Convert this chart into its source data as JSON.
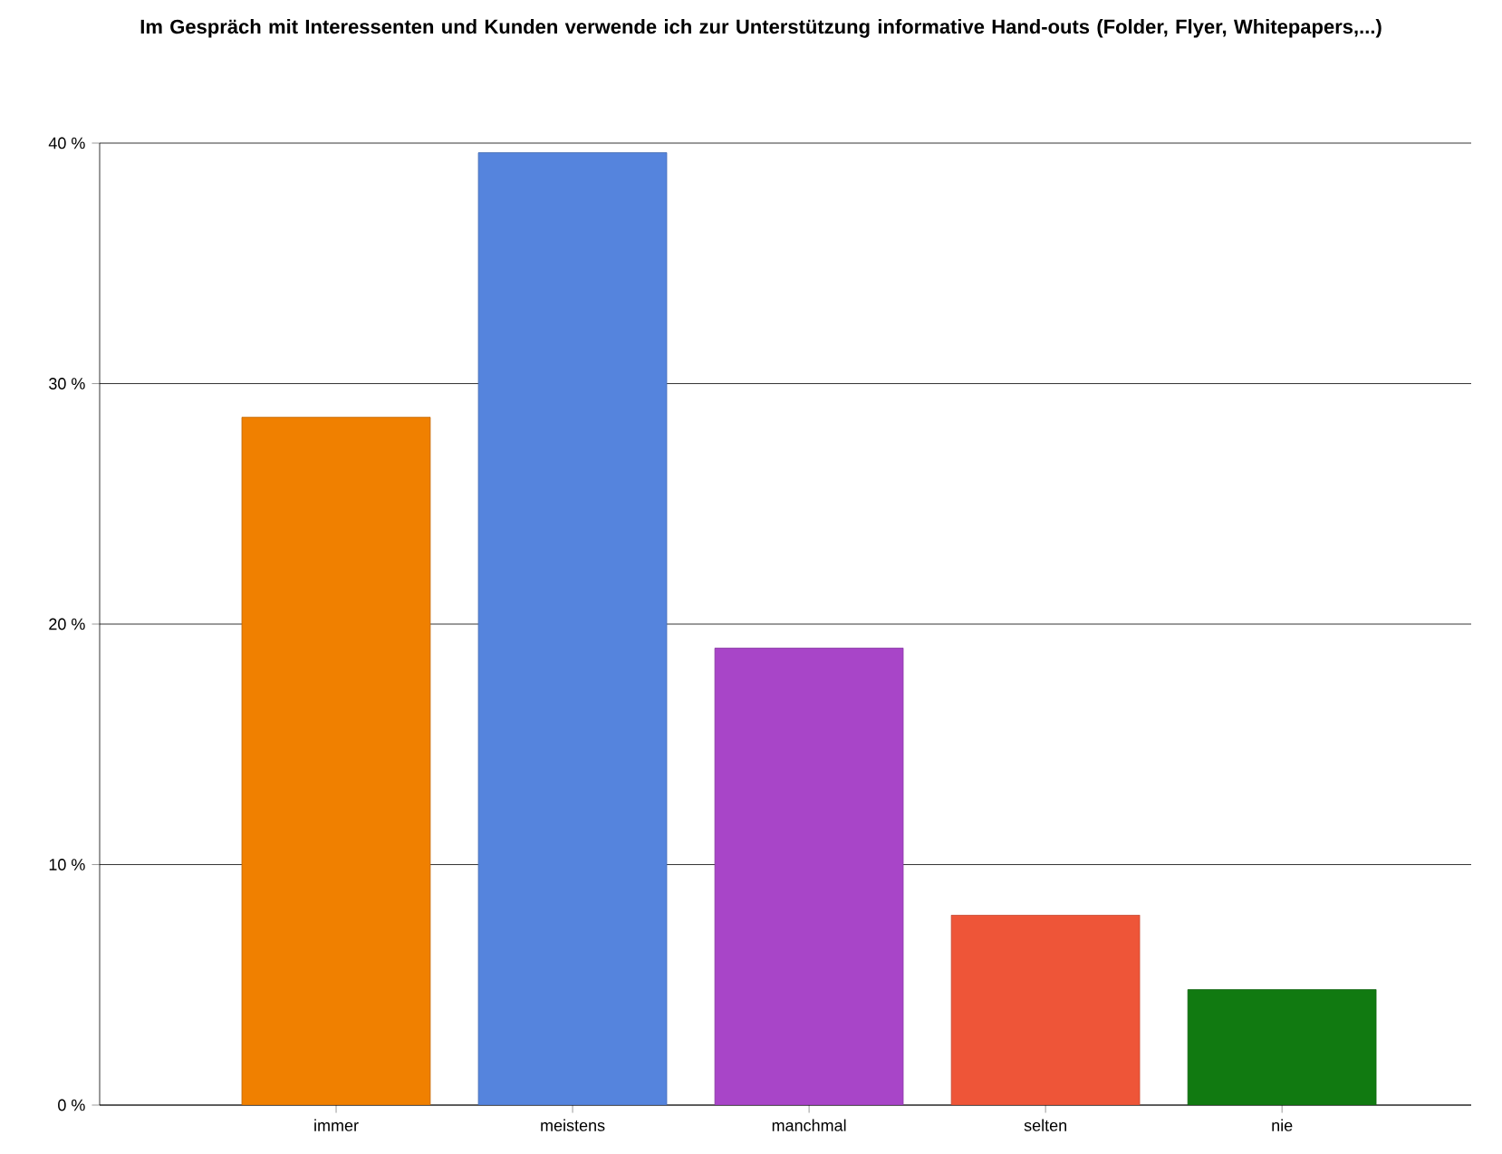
{
  "chart_data": {
    "type": "bar",
    "title": "Im Gespräch mit Interessenten und Kunden verwende ich zur Unterstützung informative Hand-outs (Folder, Flyer, Whitepapers,...)",
    "categories": [
      "immer",
      "meistens",
      "manchmal",
      "selten",
      "nie"
    ],
    "values": [
      28.6,
      39.6,
      19.0,
      7.9,
      4.8
    ],
    "colors": [
      "#f08000",
      "#5584dd",
      "#a845c8",
      "#ee5538",
      "#117a11"
    ],
    "ylim": [
      0,
      40
    ],
    "yticks": [
      {
        "value": 0,
        "label": "0 %"
      },
      {
        "value": 10,
        "label": "10 %"
      },
      {
        "value": 20,
        "label": "20 %"
      },
      {
        "value": 30,
        "label": "30 %"
      },
      {
        "value": 40,
        "label": "40 %"
      }
    ],
    "grid": "y"
  }
}
